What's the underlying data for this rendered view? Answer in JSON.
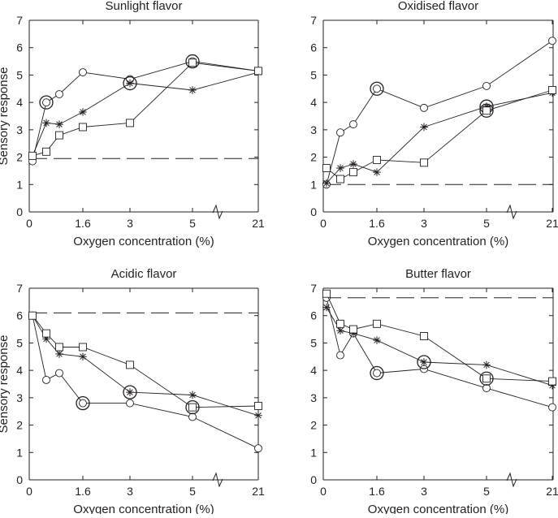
{
  "figure": {
    "ylabel": "Sensory response",
    "xlabel": "Oxygen concentration (%)"
  },
  "colors": {
    "ink": "#231f20",
    "background": "#ffffff"
  },
  "chart_data": [
    {
      "type": "line",
      "title": "Sunlight flavor",
      "xlabel": "Oxygen concentration (%)",
      "ylabel": "Sensory response",
      "x_tick_labels": [
        "0",
        "1.6",
        "3",
        "5",
        "21"
      ],
      "y_tick_labels": [
        "0",
        "1",
        "2",
        "3",
        "4",
        "5",
        "6",
        "7"
      ],
      "ylim": [
        0,
        7
      ],
      "x_axis_break": "between 5 and 21",
      "reference_level": 1.95,
      "x": [
        0.1,
        0.5,
        1.0,
        1.6,
        3.0,
        5.0,
        21.0
      ],
      "series": [
        {
          "marker": "circle",
          "values": [
            1.85,
            4.0,
            4.3,
            5.1,
            4.85,
            5.5,
            5.15
          ],
          "significant": [
            false,
            true,
            false,
            false,
            false,
            true,
            false
          ]
        },
        {
          "marker": "asterisk",
          "values": [
            2.05,
            3.25,
            3.2,
            3.65,
            4.7,
            4.45,
            5.1
          ],
          "significant": [
            false,
            false,
            false,
            false,
            true,
            false,
            false
          ]
        },
        {
          "marker": "square",
          "values": [
            2.05,
            2.2,
            2.8,
            3.1,
            3.25,
            5.45,
            5.15
          ],
          "significant": [
            false,
            false,
            false,
            false,
            false,
            false,
            false
          ]
        }
      ]
    },
    {
      "type": "line",
      "title": "Oxidised flavor",
      "xlabel": "Oxygen concentration (%)",
      "ylabel": "",
      "x_tick_labels": [
        "0",
        "1.6",
        "3",
        "5",
        "21"
      ],
      "y_tick_labels": [
        "0",
        "1",
        "2",
        "3",
        "4",
        "5",
        "6",
        "7"
      ],
      "ylim": [
        0,
        7
      ],
      "x_axis_break": "between 5 and 21",
      "reference_level": 1.0,
      "x": [
        0.1,
        0.5,
        1.0,
        1.6,
        3.0,
        5.0,
        21.0
      ],
      "series": [
        {
          "marker": "circle",
          "values": [
            1.0,
            2.9,
            3.2,
            4.5,
            3.8,
            4.6,
            6.25
          ],
          "significant": [
            false,
            false,
            false,
            true,
            false,
            false,
            false
          ]
        },
        {
          "marker": "asterisk",
          "values": [
            1.05,
            1.6,
            1.75,
            1.45,
            3.1,
            3.85,
            4.35
          ],
          "significant": [
            false,
            false,
            false,
            false,
            false,
            true,
            false
          ]
        },
        {
          "marker": "square",
          "values": [
            1.6,
            1.2,
            1.45,
            1.9,
            1.8,
            3.7,
            4.45
          ],
          "significant": [
            false,
            false,
            false,
            false,
            false,
            true,
            false
          ]
        }
      ]
    },
    {
      "type": "line",
      "title": "Acidic flavor",
      "xlabel": "Oxygen concentration (%)",
      "ylabel": "Sensory response",
      "x_tick_labels": [
        "0",
        "1.6",
        "3",
        "5",
        "21"
      ],
      "y_tick_labels": [
        "0",
        "1",
        "2",
        "3",
        "4",
        "5",
        "6",
        "7"
      ],
      "ylim": [
        0,
        7
      ],
      "x_axis_break": "between 5 and 21",
      "reference_level": 6.1,
      "x": [
        0.1,
        0.5,
        1.0,
        1.6,
        3.0,
        5.0,
        21.0
      ],
      "series": [
        {
          "marker": "circle",
          "values": [
            6.0,
            3.65,
            3.9,
            2.8,
            2.8,
            2.3,
            1.15
          ],
          "significant": [
            false,
            false,
            false,
            true,
            false,
            false,
            false
          ]
        },
        {
          "marker": "asterisk",
          "values": [
            6.0,
            5.15,
            4.6,
            4.5,
            3.2,
            3.1,
            2.35
          ],
          "significant": [
            false,
            false,
            false,
            false,
            true,
            false,
            false
          ]
        },
        {
          "marker": "square",
          "values": [
            6.0,
            5.35,
            4.85,
            4.85,
            4.2,
            2.65,
            2.7
          ],
          "significant": [
            false,
            false,
            false,
            false,
            false,
            true,
            false
          ]
        }
      ]
    },
    {
      "type": "line",
      "title": "Butter flavor",
      "xlabel": "Oxygen concentration (%)",
      "ylabel": "",
      "x_tick_labels": [
        "0",
        "1.6",
        "3",
        "5",
        "21"
      ],
      "y_tick_labels": [
        "0",
        "1",
        "2",
        "3",
        "4",
        "5",
        "6",
        "7"
      ],
      "ylim": [
        0,
        7
      ],
      "x_axis_break": "between 5 and 21",
      "reference_level": 6.65,
      "x": [
        0.1,
        0.5,
        1.0,
        1.6,
        3.0,
        5.0,
        21.0
      ],
      "series": [
        {
          "marker": "circle",
          "values": [
            6.65,
            4.55,
            5.35,
            3.9,
            4.05,
            3.35,
            2.65
          ],
          "significant": [
            false,
            false,
            false,
            true,
            false,
            false,
            false
          ]
        },
        {
          "marker": "asterisk",
          "values": [
            6.3,
            5.45,
            5.35,
            5.1,
            4.3,
            4.2,
            3.45
          ],
          "significant": [
            false,
            false,
            false,
            false,
            true,
            false,
            false
          ]
        },
        {
          "marker": "square",
          "values": [
            6.8,
            5.7,
            5.5,
            5.7,
            5.25,
            3.7,
            3.6
          ],
          "significant": [
            false,
            false,
            false,
            false,
            false,
            true,
            false
          ]
        }
      ]
    }
  ]
}
